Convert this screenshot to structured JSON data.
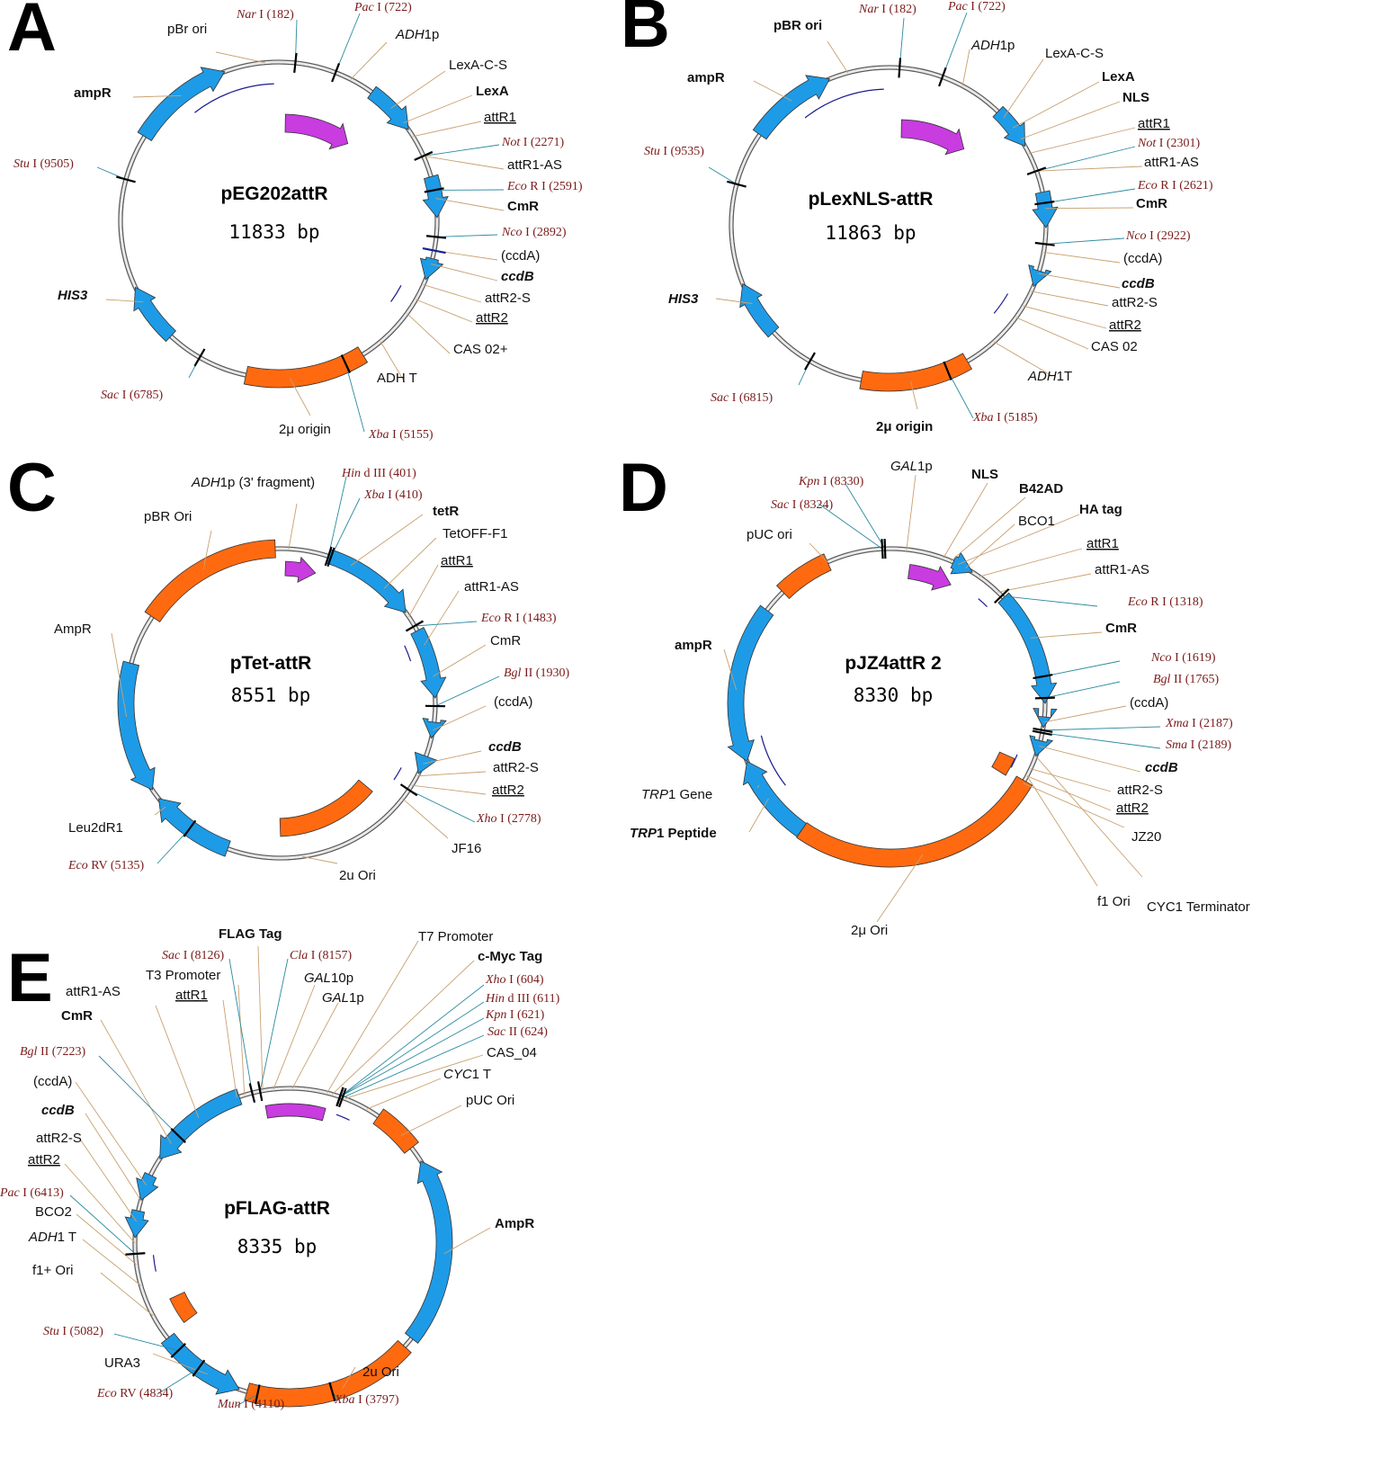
{
  "colors": {
    "backbone": "#7a7a7a",
    "blue_feature": "#1e9be6",
    "orange_feature": "#ff6a10",
    "magenta_feature": "#c83ce0",
    "enzyme_text": "#7a1a1a",
    "leader_feature": "#c8a070",
    "leader_enzyme": "#2a8aa0",
    "cut_marker": "#000000",
    "primer_mark": "#1a1a90"
  },
  "panels": [
    {
      "id": "A",
      "letter": "A",
      "title": "pEG202attR",
      "size": "11833 bp",
      "features": [
        {
          "text": "pBr ori"
        },
        {
          "text": "ampR",
          "style": "bold"
        },
        {
          "text": "ADH1p",
          "italic_part": "ADH",
          "rest": "1p"
        },
        {
          "text": "LexA-C-S"
        },
        {
          "text": "LexA",
          "style": "bold"
        },
        {
          "text": "attR1",
          "style": "ul"
        },
        {
          "text": "attR1-AS"
        },
        {
          "text": "CmR",
          "style": "bold"
        },
        {
          "text": "(ccdA)"
        },
        {
          "text": "ccdB",
          "style": "bolditalic"
        },
        {
          "text": "attR2-S"
        },
        {
          "text": "attR2",
          "style": "ul"
        },
        {
          "text": "CAS 02+"
        },
        {
          "text": "ADH T"
        },
        {
          "text": "2μ origin"
        },
        {
          "text": "HIS3",
          "style": "bolditalic"
        }
      ],
      "enzymes": [
        {
          "name": "Nar",
          "site": "I (182)"
        },
        {
          "name": "Pac",
          "site": "I (722)"
        },
        {
          "name": "Not",
          "site": "I (2271)"
        },
        {
          "name": "Eco",
          "site": "R I (2591)"
        },
        {
          "name": "Nco",
          "site": "I (2892)"
        },
        {
          "name": "Xba",
          "site": "I (5155)"
        },
        {
          "name": "Sac",
          "site": "I (6785)"
        },
        {
          "name": "Stu",
          "site": "I (9505)"
        }
      ]
    },
    {
      "id": "B",
      "letter": "B",
      "title": "pLexNLS-attR",
      "size": "11863 bp",
      "features": [
        {
          "text": "pBR ori",
          "style": "bold"
        },
        {
          "text": "ampR",
          "style": "bold"
        },
        {
          "text": "ADH1p",
          "italic_part": "ADH",
          "rest": "1p"
        },
        {
          "text": "LexA-C-S"
        },
        {
          "text": "LexA",
          "style": "bold"
        },
        {
          "text": "NLS",
          "style": "bold"
        },
        {
          "text": "attR1",
          "style": "ul"
        },
        {
          "text": "attR1-AS"
        },
        {
          "text": "CmR",
          "style": "bold"
        },
        {
          "text": "(ccdA)"
        },
        {
          "text": "ccdB",
          "style": "bolditalic"
        },
        {
          "text": "attR2-S"
        },
        {
          "text": "attR2",
          "style": "ul"
        },
        {
          "text": "CAS 02"
        },
        {
          "text": "ADH1T",
          "italic_part": "ADH",
          "rest": "1T"
        },
        {
          "text": "2μ origin",
          "style": "bold"
        },
        {
          "text": "HIS3",
          "style": "bolditalic"
        }
      ],
      "enzymes": [
        {
          "name": "Nar",
          "site": "I (182)"
        },
        {
          "name": "Pac",
          "site": "I (722)"
        },
        {
          "name": "Not",
          "site": "I (2301)"
        },
        {
          "name": "Eco",
          "site": "R I (2621)"
        },
        {
          "name": "Nco",
          "site": "I (2922)"
        },
        {
          "name": "Xba",
          "site": "I (5185)"
        },
        {
          "name": "Sac",
          "site": "I (6815)"
        },
        {
          "name": "Stu",
          "site": "I (9535)"
        }
      ]
    },
    {
      "id": "C",
      "letter": "C",
      "title": "pTet-attR",
      "size": "8551 bp",
      "features": [
        {
          "text": "ADH1p (3' fragment)",
          "italic_part": "ADH",
          "rest": "1p (3' fragment)"
        },
        {
          "text": "pBR Ori"
        },
        {
          "text": "tetR",
          "style": "bold"
        },
        {
          "text": "TetOFF-F1"
        },
        {
          "text": "attR1",
          "style": "ul"
        },
        {
          "text": "attR1-AS"
        },
        {
          "text": "CmR"
        },
        {
          "text": "(ccdA)"
        },
        {
          "text": "ccdB",
          "style": "bolditalic"
        },
        {
          "text": "attR2-S"
        },
        {
          "text": "attR2",
          "style": "ul"
        },
        {
          "text": "JF16"
        },
        {
          "text": "2u Ori"
        },
        {
          "text": "AmpR"
        },
        {
          "text": "Leu2dR1"
        }
      ],
      "enzymes": [
        {
          "name": "Hin",
          "site": "d III (401)"
        },
        {
          "name": "Xba",
          "site": "I (410)"
        },
        {
          "name": "Eco",
          "site": "R I (1483)"
        },
        {
          "name": "Bgl",
          "site": "II (1930)"
        },
        {
          "name": "Xho",
          "site": "I (2778)"
        },
        {
          "name": "Eco",
          "site": "RV (5135)"
        }
      ]
    },
    {
      "id": "D",
      "letter": "D",
      "title": "pJZ4attR 2",
      "size": "8330 bp",
      "features": [
        {
          "text": "GAL1p",
          "italic_part": "GAL",
          "rest": "1p"
        },
        {
          "text": "NLS",
          "style": "bold"
        },
        {
          "text": "B42AD",
          "style": "bold"
        },
        {
          "text": "HA tag",
          "style": "bold"
        },
        {
          "text": "BCO1"
        },
        {
          "text": "pUC ori"
        },
        {
          "text": "attR1",
          "style": "ul"
        },
        {
          "text": "attR1-AS"
        },
        {
          "text": "CmR",
          "style": "bold"
        },
        {
          "text": "(ccdA)"
        },
        {
          "text": "ccdB",
          "style": "bolditalic"
        },
        {
          "text": "attR2-S"
        },
        {
          "text": "attR2",
          "style": "ul"
        },
        {
          "text": "JZ20"
        },
        {
          "text": "f1 Ori"
        },
        {
          "text": "CYC1 Terminator"
        },
        {
          "text": "2μ Ori"
        },
        {
          "text": "ampR",
          "style": "bold"
        },
        {
          "text": "TRP1 Gene",
          "italic_part": "TRP",
          "rest": "1 Gene"
        },
        {
          "text": "TRP1 Peptide",
          "italic_part": "TRP",
          "rest": "1 Peptide",
          "style": "bold"
        }
      ],
      "enzymes": [
        {
          "name": "Kpn",
          "site": "I (8330)"
        },
        {
          "name": "Sac",
          "site": "I (8324)"
        },
        {
          "name": "Eco",
          "site": "R I (1318)"
        },
        {
          "name": "Nco",
          "site": "I (1619)"
        },
        {
          "name": "Bgl",
          "site": "II (1765)"
        },
        {
          "name": "Xma",
          "site": "I (2187)"
        },
        {
          "name": "Sma",
          "site": "I (2189)"
        }
      ]
    },
    {
      "id": "E",
      "letter": "E",
      "title": "pFLAG-attR",
      "size": "8335 bp",
      "features": [
        {
          "text": "FLAG Tag",
          "style": "bold"
        },
        {
          "text": "T3 Promoter"
        },
        {
          "text": "attR1",
          "style": "ul"
        },
        {
          "text": "attR1-AS"
        },
        {
          "text": "CmR",
          "style": "bold"
        },
        {
          "text": "(ccdA)"
        },
        {
          "text": "ccdB",
          "style": "bolditalic"
        },
        {
          "text": "attR2-S"
        },
        {
          "text": "attR2",
          "style": "ul"
        },
        {
          "text": "BCO2"
        },
        {
          "text": "ADH1 T",
          "italic_part": "ADH",
          "rest": "1 T"
        },
        {
          "text": "f1+ Ori"
        },
        {
          "text": "URA3"
        },
        {
          "text": "GAL10p",
          "italic_part": "GAL",
          "rest": "10p"
        },
        {
          "text": "GAL1p",
          "italic_part": "GAL",
          "rest": "1p"
        },
        {
          "text": "T7 Promoter"
        },
        {
          "text": "c-Myc Tag",
          "style": "bold"
        },
        {
          "text": "CAS_04"
        },
        {
          "text": "CYC1 T",
          "italic_part": "CYC",
          "rest": "1 T"
        },
        {
          "text": "pUC Ori"
        },
        {
          "text": "AmpR",
          "style": "bold"
        },
        {
          "text": "2u Ori"
        }
      ],
      "enzymes": [
        {
          "name": "Sac",
          "site": "I (8126)"
        },
        {
          "name": "Cla",
          "site": "I (8157)"
        },
        {
          "name": "Bgl",
          "site": "II (7223)"
        },
        {
          "name": "Pac",
          "site": "I (6413)"
        },
        {
          "name": "Stu",
          "site": "I (5082)"
        },
        {
          "name": "Eco",
          "site": "RV (4834)"
        },
        {
          "name": "Mun",
          "site": "I (4110)"
        },
        {
          "name": "Xba",
          "site": "I (3797)"
        },
        {
          "name": "Xho",
          "site": "I (604)"
        },
        {
          "name": "Hin",
          "site": "d III (611)"
        },
        {
          "name": "Kpn",
          "site": "I (621)"
        },
        {
          "name": "Sac",
          "site": "II (624)"
        }
      ]
    }
  ]
}
